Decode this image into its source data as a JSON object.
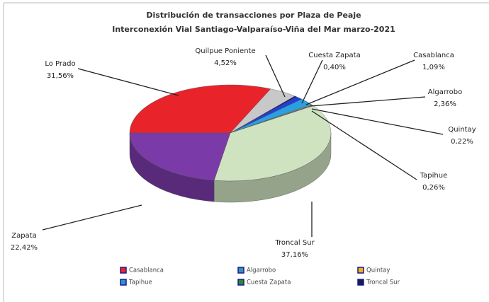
{
  "chart_data": {
    "type": "pie3d",
    "title": "Distribución de transacciones  por Plaza de Peaje",
    "subtitle": "Interconexión Vial Santiago-Valparaíso-Viña  del Mar marzo-2021",
    "categories": [
      "Lo Prado",
      "Quilpue Poniente",
      "Cuesta Zapata",
      "Casablanca",
      "Algarrobo",
      "Quintay",
      "Tapihue",
      "Troncal Sur",
      "Zapata"
    ],
    "values": [
      31.56,
      4.52,
      0.4,
      1.09,
      2.36,
      0.22,
      0.26,
      37.16,
      22.42
    ],
    "value_labels": [
      "31,56%",
      "4,52%",
      "0,40%",
      "1,09%",
      "2,36%",
      "0,22%",
      "0,26%",
      "37,16%",
      "22,42%"
    ],
    "colors": [
      "#e8232a",
      "#c8c8c8",
      "#1a1a8c",
      "#2040d8",
      "#2aa0e0",
      "#e0a020",
      "#3070c0",
      "#cfe3c0",
      "#7a3aa8"
    ],
    "legend": [
      {
        "name": "Casablanca",
        "color": "#e8232a"
      },
      {
        "name": "Algarrobo",
        "color": "#3a8fb8"
      },
      {
        "name": "Quintay",
        "color": "#f0b020"
      },
      {
        "name": "Tapihue",
        "color": "#2a90d8"
      },
      {
        "name": "Cuesta Zapata",
        "color": "#2a8a2a"
      },
      {
        "name": "Troncal Sur",
        "color": "#1a1a50"
      }
    ]
  }
}
